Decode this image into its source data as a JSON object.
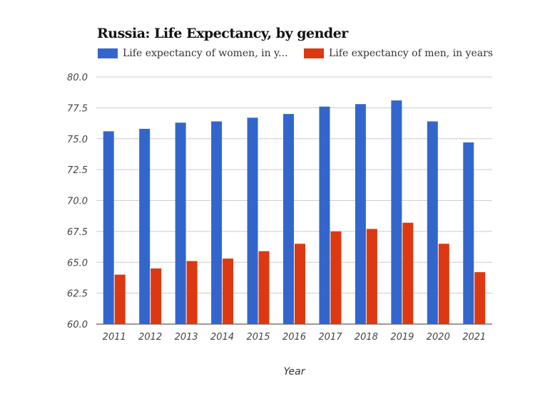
{
  "chart_data": {
    "type": "bar",
    "title": "Russia: Life Expectancy, by gender",
    "xlabel": "Year",
    "ylabel": "",
    "ylim": [
      60,
      80
    ],
    "yticks": [
      "60.0",
      "62.5",
      "65.0",
      "67.5",
      "70.0",
      "72.5",
      "75.0",
      "77.5",
      "80.0"
    ],
    "grid": true,
    "legend_position": "top",
    "categories": [
      "2011",
      "2012",
      "2013",
      "2014",
      "2015",
      "2016",
      "2017",
      "2018",
      "2019",
      "2020",
      "2021"
    ],
    "series": [
      {
        "name": "Life expectancy of women, in y...",
        "color": "#3366cc",
        "values": [
          75.6,
          75.8,
          76.3,
          76.4,
          76.7,
          77.0,
          77.6,
          77.8,
          78.1,
          76.4,
          74.7
        ]
      },
      {
        "name": "Life expectancy of men, in years",
        "color": "#dc3912",
        "values": [
          64.0,
          64.5,
          65.1,
          65.3,
          65.9,
          66.5,
          67.5,
          67.7,
          68.2,
          66.5,
          64.2
        ]
      }
    ]
  }
}
